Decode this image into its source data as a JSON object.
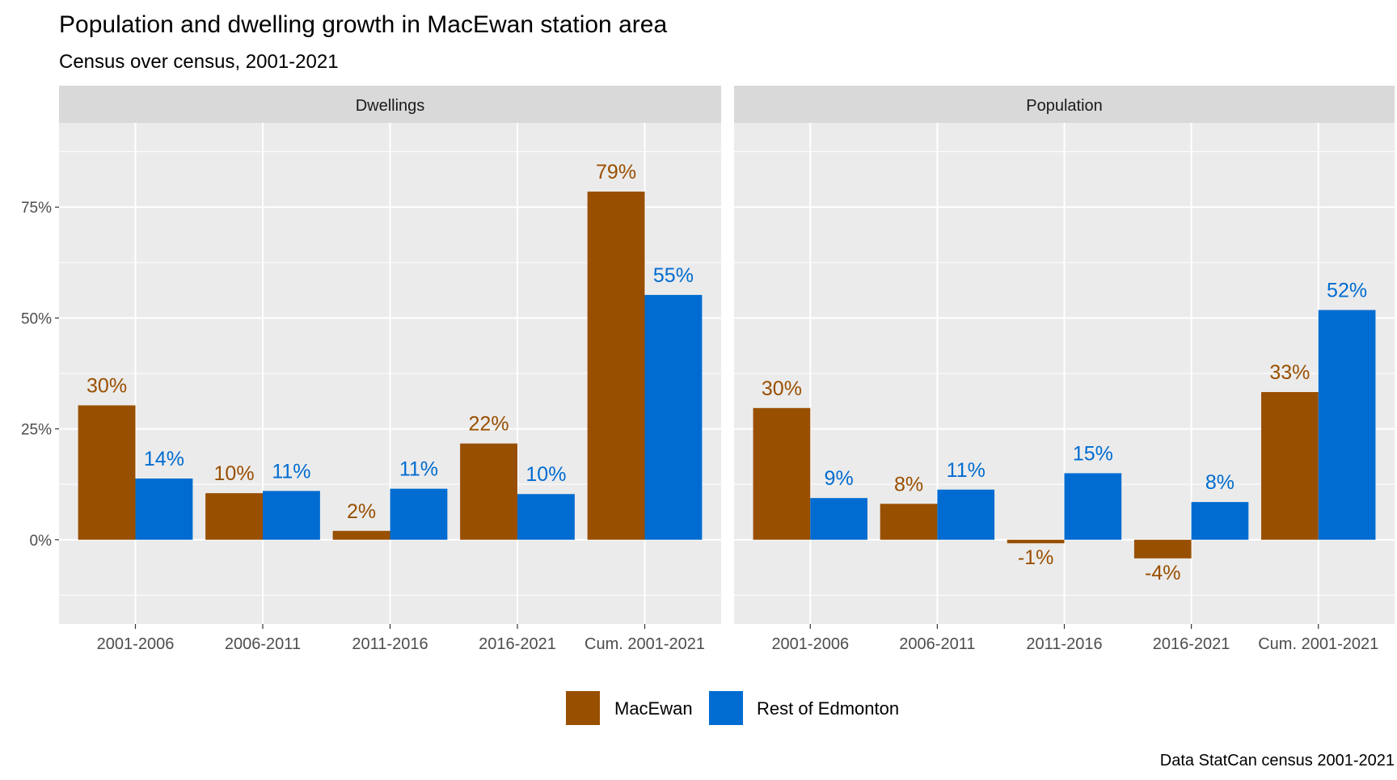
{
  "chart_data": {
    "type": "bar",
    "title": "Population and dwelling growth in MacEwan station area",
    "subtitle": "Census over census, 2001-2021",
    "caption": "Data StatCan census 2001-2021",
    "categories": [
      "2001-2006",
      "2006-2011",
      "2011-2016",
      "2016-2021",
      "Cum. 2001-2021"
    ],
    "ylim": [
      -19,
      94
    ],
    "yticks": [
      0,
      25,
      50,
      75
    ],
    "ytick_labels": [
      "0%",
      "25%",
      "50%",
      "75%"
    ],
    "grid": true,
    "legend_position": "bottom",
    "colors": {
      "MacEwan": "#994F00",
      "Rest of Edmonton": "#006CD1",
      "panel_bg": "#EBEBEB",
      "strip_bg": "#D9D9D9"
    },
    "legend": [
      "MacEwan",
      "Rest of Edmonton"
    ],
    "panels": [
      {
        "name": "Dwellings",
        "series": [
          {
            "name": "MacEwan",
            "values": [
              30.3,
              10.5,
              2.0,
              21.7,
              78.5
            ],
            "labels": [
              "30%",
              "10%",
              "2%",
              "22%",
              "79%"
            ]
          },
          {
            "name": "Rest of Edmonton",
            "values": [
              13.8,
              11.0,
              11.5,
              10.3,
              55.2
            ],
            "labels": [
              "14%",
              "11%",
              "11%",
              "10%",
              "55%"
            ]
          }
        ]
      },
      {
        "name": "Population",
        "series": [
          {
            "name": "MacEwan",
            "values": [
              29.7,
              8.1,
              -0.8,
              -4.2,
              33.3
            ],
            "labels": [
              "30%",
              "8%",
              "-1%",
              "-4%",
              "33%"
            ]
          },
          {
            "name": "Rest of Edmonton",
            "values": [
              9.4,
              11.3,
              15.0,
              8.5,
              51.8
            ],
            "labels": [
              "9%",
              "11%",
              "15%",
              "8%",
              "52%"
            ]
          }
        ]
      }
    ]
  }
}
